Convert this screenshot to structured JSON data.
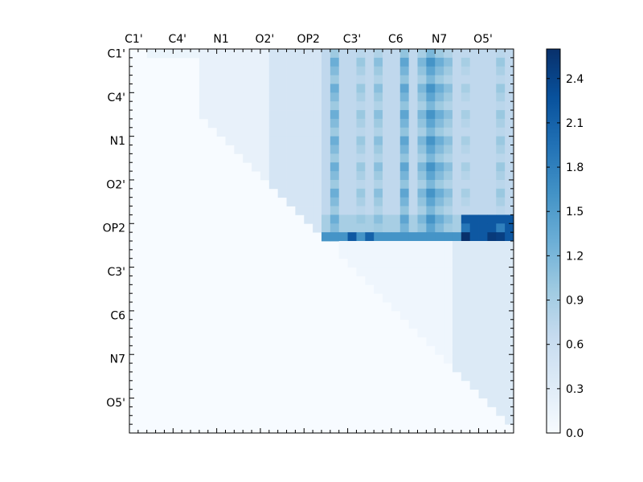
{
  "chart_data": {
    "type": "heatmap",
    "title": "",
    "xlabel": "",
    "ylabel": "",
    "x_tick_labels": [
      "C1'",
      "C4'",
      "N1",
      "O2'",
      "OP2",
      "C3'",
      "C6",
      "N7",
      "O5'"
    ],
    "y_tick_labels": [
      "C1'",
      "C4'",
      "N1",
      "O2'",
      "OP2",
      "C3'",
      "C6",
      "N7",
      "O5'"
    ],
    "x_tick_position": "top",
    "grid_size": 44,
    "label_every": 5,
    "matrix_shape": "upper-triangular",
    "colormap": "Blues",
    "colormap_stops": [
      "#f7fbff",
      "#deebf7",
      "#c6dbef",
      "#9ecae1",
      "#6baed6",
      "#4292c6",
      "#2171b5",
      "#08519c",
      "#08306b"
    ],
    "vmin": 0.0,
    "vmax": 2.6,
    "colorbar_ticks": [
      "0.0",
      "0.3",
      "0.6",
      "0.9",
      "1.2",
      "1.5",
      "1.8",
      "2.1",
      "2.4"
    ],
    "colorbar_tick_values": [
      0.0,
      0.3,
      0.6,
      0.9,
      1.2,
      1.5,
      1.8,
      2.1,
      2.4
    ],
    "blocks": [
      {
        "rows": [
          0,
          0
        ],
        "cols": [
          2,
          8
        ],
        "value": 0.15
      },
      {
        "rows": [
          0,
          21
        ],
        "cols": [
          8,
          21
        ],
        "value": 0.2
      },
      {
        "rows": [
          0,
          21
        ],
        "cols": [
          16,
          21
        ],
        "value": 0.45
      },
      {
        "rows": [
          0,
          21
        ],
        "cols": [
          22,
          43
        ],
        "value": 0.7
      },
      {
        "rows": [
          0,
          21
        ],
        "cols": [
          35,
          43
        ],
        "value": 0.4
      },
      {
        "rows": [
          19,
          20
        ],
        "cols": [
          22,
          43
        ],
        "value": 0.9
      },
      {
        "rows": [
          21,
          21
        ],
        "cols": [
          22,
          43
        ],
        "value": 1.6
      },
      {
        "rows": [
          19,
          21
        ],
        "cols": [
          38,
          43
        ],
        "value": 2.2
      },
      {
        "rows": [
          22,
          43
        ],
        "cols": [
          24,
          43
        ],
        "value": 0.1
      },
      {
        "rows": [
          22,
          43
        ],
        "cols": [
          37,
          43
        ],
        "value": 0.35
      }
    ],
    "strong_columns": [
      {
        "col": 23,
        "value": 1.3
      },
      {
        "col": 26,
        "value": 1.0
      },
      {
        "col": 28,
        "value": 1.1
      },
      {
        "col": 31,
        "value": 1.4
      },
      {
        "col": 33,
        "value": 1.2
      },
      {
        "col": 34,
        "value": 1.6
      },
      {
        "col": 35,
        "value": 1.3
      },
      {
        "col": 36,
        "value": 1.1
      },
      {
        "col": 38,
        "value": 0.9
      },
      {
        "col": 42,
        "value": 1.0
      }
    ],
    "peak_cells": [
      {
        "row": 21,
        "col": 38,
        "value": 2.6
      },
      {
        "row": 21,
        "col": 41,
        "value": 2.5
      },
      {
        "row": 21,
        "col": 42,
        "value": 2.45
      },
      {
        "row": 21,
        "col": 25,
        "value": 2.2
      },
      {
        "row": 21,
        "col": 27,
        "value": 2.1
      },
      {
        "row": 20,
        "col": 38,
        "value": 1.9
      },
      {
        "row": 20,
        "col": 42,
        "value": 1.8
      }
    ]
  }
}
